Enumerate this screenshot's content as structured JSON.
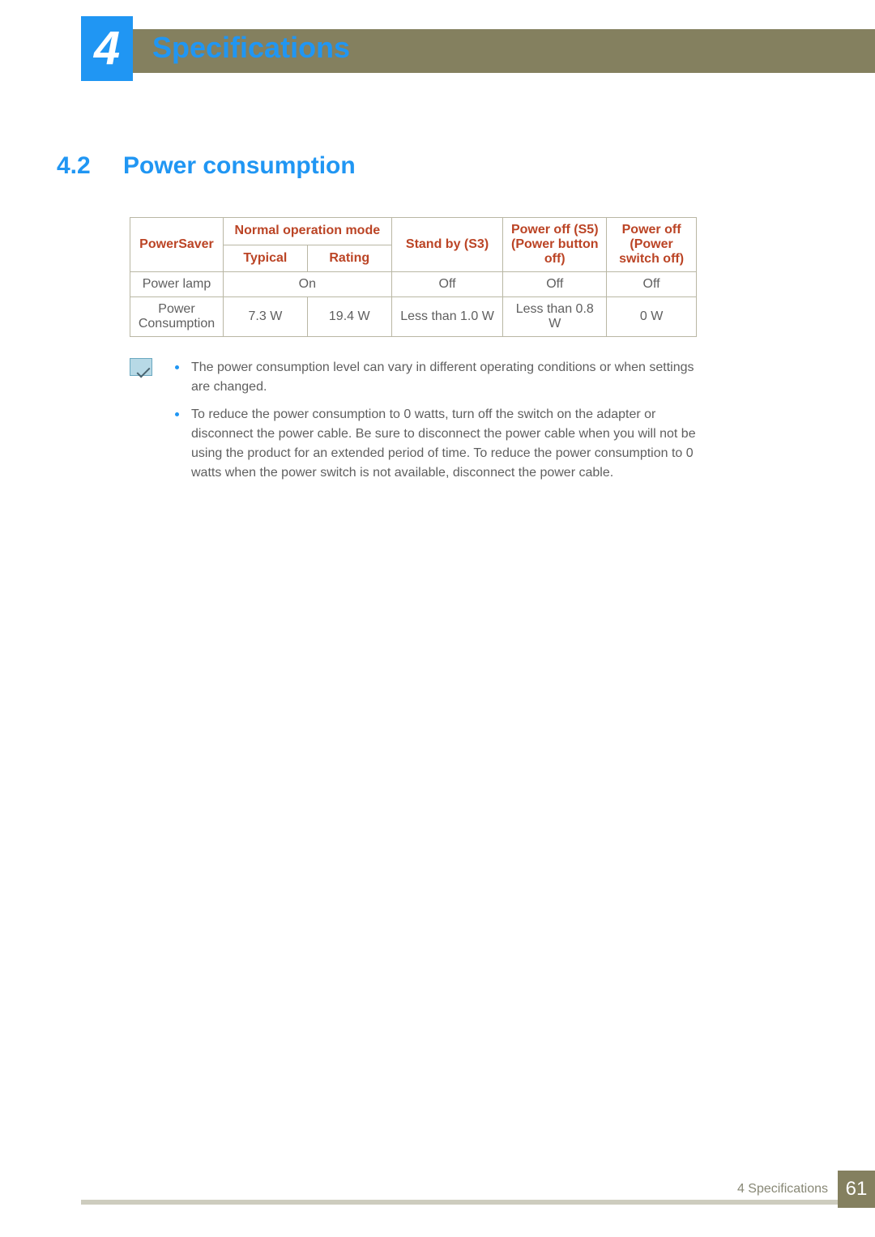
{
  "header": {
    "chapter_number": "4",
    "chapter_title": "Specifications"
  },
  "section": {
    "number": "4.2",
    "title": "Power consumption"
  },
  "table": {
    "headers": {
      "powersaver": "PowerSaver",
      "normal_op": "Normal operation mode",
      "typical": "Typical",
      "rating": "Rating",
      "standby": "Stand by (S3)",
      "power_off_s5_l1": "Power off (S5)",
      "power_off_s5_l2": "(Power button off)",
      "power_off_sw_l1": "Power off",
      "power_off_sw_l2": "(Power switch off)"
    },
    "rows": [
      {
        "label": "Power lamp",
        "normal_on": "On",
        "standby": "Off",
        "s5": "Off",
        "sw": "Off"
      },
      {
        "label": "Power Consumption",
        "typical": "7.3 W",
        "rating": "19.4 W",
        "standby": "Less than 1.0 W",
        "s5": "Less than 0.8 W",
        "sw": "0 W"
      }
    ]
  },
  "notes": [
    "The power consumption level can vary in different operating conditions or when settings are changed.",
    "To reduce the power consumption to 0 watts, turn off the switch on the adapter or disconnect the power cable. Be sure to disconnect the power cable when you will not be using the product for an extended period of time. To reduce the power consumption to 0 watts when the power switch is not available, disconnect the power cable."
  ],
  "footer": {
    "text": "4 Specifications",
    "page": "61"
  },
  "colors": {
    "accent_blue": "#2096f3",
    "header_brown": "#84805f",
    "table_border": "#b9b7a4",
    "header_red": "#bb4425",
    "body_text": "#5f5f5f",
    "footer_bar": "#cdccbe",
    "footer_text": "#888876"
  }
}
